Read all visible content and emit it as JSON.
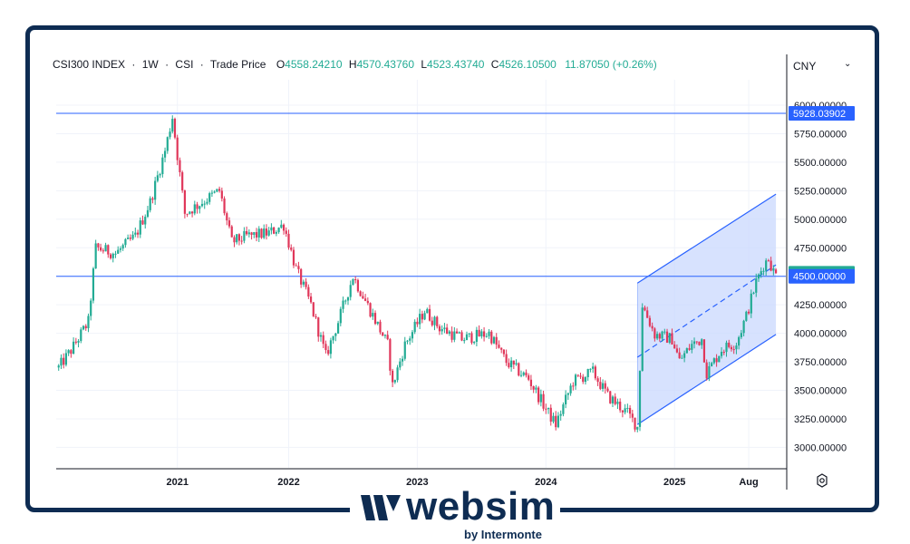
{
  "header": {
    "symbol": "CSI300 INDEX",
    "sep1": "·",
    "interval": "1W",
    "sep2": "·",
    "exchange": "CSI",
    "sep3": "·",
    "price_type": "Trade Price",
    "o_key": "O",
    "o_val": "4558.24210",
    "h_key": "H",
    "h_val": "4570.43760",
    "l_key": "L",
    "l_val": "4523.43740",
    "c_key": "C",
    "c_val": "4526.10500",
    "change": "11.87050 (+0.26%)"
  },
  "currency_selector": {
    "label": "CNY"
  },
  "colors": {
    "up": "#22ab94",
    "down": "#e0375a",
    "line": "#2962ff",
    "badge": "#2962ff",
    "channel": "#c9d8fd",
    "brand": "#0e2c52"
  },
  "chart_data": {
    "type": "candlestick",
    "y_ticks": [
      "3000.00000",
      "3250.00000",
      "3500.00000",
      "3750.00000",
      "4000.00000",
      "4250.00000",
      "4500.00000",
      "4750.00000",
      "5000.00000",
      "5250.00000",
      "5500.00000",
      "5750.00000",
      "6000.00000"
    ],
    "x_ticks": [
      "2021",
      "2022",
      "2023",
      "2024",
      "2025",
      "Aug"
    ],
    "ylim": [
      2830,
      6230
    ],
    "horizontal_lines": [
      {
        "value": 5928.03902,
        "label": "5928.03902"
      },
      {
        "value": 4500.0,
        "label": "4500.00000"
      }
    ],
    "last_price": {
      "value": 4526.105,
      "label": "4526.10500"
    },
    "regression_channel": {
      "start": {
        "date": "2024-09-20",
        "low": 3200,
        "mid": 3790,
        "high": 4440
      },
      "end": {
        "date": "2025-10-17",
        "low": 3990,
        "mid": 4600,
        "high": 5220
      }
    },
    "price_path": [
      [
        "2020-03-27",
        3700
      ],
      [
        "2020-05-01",
        3850
      ],
      [
        "2020-06-19",
        4100
      ],
      [
        "2020-07-10",
        4750
      ],
      [
        "2020-09-04",
        4700
      ],
      [
        "2020-10-30",
        4850
      ],
      [
        "2020-12-11",
        5150
      ],
      [
        "2021-01-22",
        5600
      ],
      [
        "2021-02-12",
        5900
      ],
      [
        "2021-03-19",
        5050
      ],
      [
        "2021-05-07",
        5150
      ],
      [
        "2021-06-25",
        5250
      ],
      [
        "2021-07-30",
        4800
      ],
      [
        "2021-09-10",
        4850
      ],
      [
        "2021-11-12",
        4880
      ],
      [
        "2021-12-24",
        4950
      ],
      [
        "2022-01-28",
        4560
      ],
      [
        "2022-03-11",
        4250
      ],
      [
        "2022-04-22",
        3800
      ],
      [
        "2022-05-27",
        4100
      ],
      [
        "2022-07-08",
        4500
      ],
      [
        "2022-08-26",
        4200
      ],
      [
        "2022-10-14",
        3900
      ],
      [
        "2022-10-28",
        3540
      ],
      [
        "2022-12-02",
        3900
      ],
      [
        "2023-01-27",
        4200
      ],
      [
        "2023-03-10",
        4050
      ],
      [
        "2023-05-12",
        3950
      ],
      [
        "2023-07-28",
        4000
      ],
      [
        "2023-09-15",
        3750
      ],
      [
        "2023-11-17",
        3600
      ],
      [
        "2024-01-12",
        3300
      ],
      [
        "2024-02-02",
        3200
      ],
      [
        "2024-03-22",
        3580
      ],
      [
        "2024-05-17",
        3660
      ],
      [
        "2024-06-28",
        3450
      ],
      [
        "2024-08-23",
        3300
      ],
      [
        "2024-09-20",
        3180
      ],
      [
        "2024-09-27",
        3700
      ],
      [
        "2024-10-04",
        4250
      ],
      [
        "2024-11-08",
        3990
      ],
      [
        "2024-12-27",
        3950
      ],
      [
        "2025-01-17",
        3760
      ],
      [
        "2025-02-21",
        3900
      ],
      [
        "2025-03-21",
        3950
      ],
      [
        "2025-04-04",
        3650
      ],
      [
        "2025-05-16",
        3860
      ],
      [
        "2025-06-27",
        3920
      ],
      [
        "2025-07-25",
        4150
      ],
      [
        "2025-08-22",
        4450
      ],
      [
        "2025-09-12",
        4600
      ],
      [
        "2025-09-26",
        4660
      ],
      [
        "2025-10-10",
        4540
      ],
      [
        "2025-10-17",
        4526
      ]
    ],
    "title": "",
    "xlabel": "",
    "ylabel": ""
  },
  "logo": {
    "word": "websim",
    "sub": "by Intermonte"
  }
}
